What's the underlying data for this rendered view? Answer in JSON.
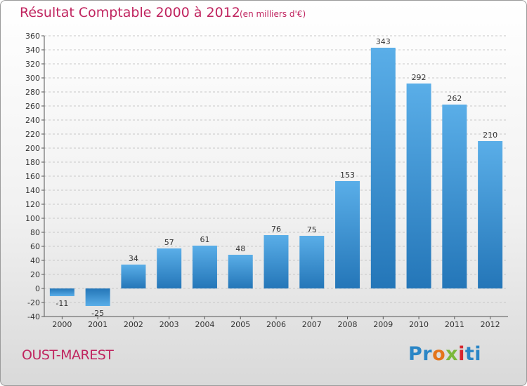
{
  "header": {
    "title": "Résultat Comptable 2000 à 2012",
    "subtitle": "(en milliers d'€)"
  },
  "footer": {
    "commune": "OUST-MAREST",
    "logo": [
      "Pr",
      "o",
      "x",
      "i",
      "ti"
    ]
  },
  "colors": {
    "bar_top": "#5aaee8",
    "bar_bottom": "#2476b8",
    "title": "#c0245f"
  },
  "chart_data": {
    "type": "bar",
    "title": "Résultat Comptable 2000 à 2012",
    "subtitle": "(en milliers d'€)",
    "categories": [
      "2000",
      "2001",
      "2002",
      "2003",
      "2004",
      "2005",
      "2006",
      "2007",
      "2008",
      "2009",
      "2010",
      "2011",
      "2012"
    ],
    "values": [
      -11,
      -25,
      34,
      57,
      61,
      48,
      76,
      75,
      153,
      343,
      292,
      262,
      210
    ],
    "data_labels": [
      "-11",
      "-25",
      "34",
      "57",
      "61",
      "48",
      "76",
      "75",
      "153",
      "343",
      "292",
      "262",
      "210"
    ],
    "ylim": [
      -40,
      360
    ],
    "yticks": [
      -40,
      -20,
      0,
      20,
      40,
      60,
      80,
      100,
      120,
      140,
      160,
      180,
      200,
      220,
      240,
      260,
      280,
      300,
      320,
      340,
      360
    ],
    "grid": "horizontal dashed",
    "xlabel": "",
    "ylabel": ""
  }
}
